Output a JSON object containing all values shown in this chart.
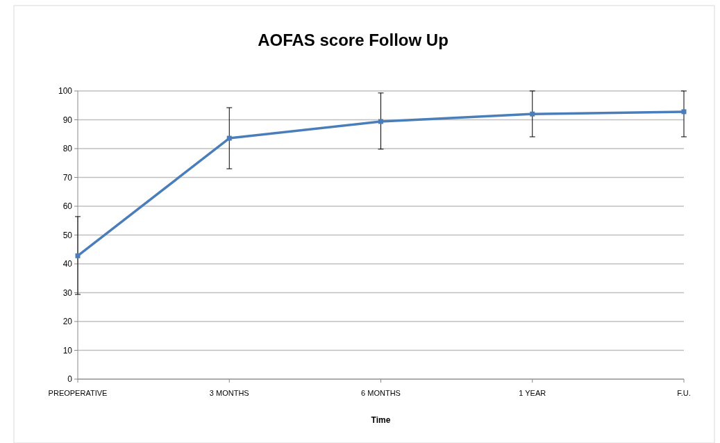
{
  "chart_data": {
    "type": "line",
    "title": "AOFAS score Follow Up",
    "xlabel": "Time",
    "categories": [
      "PREOPERATIVE",
      "3 MONTHS",
      "6 MONTHS",
      "1 YEAR",
      "F.U."
    ],
    "series": [
      {
        "color": "#4a7ebb",
        "values": [
          42.8,
          83.6,
          89.4,
          92.0,
          92.8
        ],
        "errors": [
          [
            29.4,
            56.4
          ],
          [
            73.0,
            94.2
          ],
          [
            79.8,
            99.3
          ],
          [
            84.1,
            100
          ],
          [
            84.1,
            100
          ]
        ]
      }
    ],
    "ylim": [
      0,
      100
    ],
    "yticks": [
      0,
      10,
      20,
      30,
      40,
      50,
      60,
      70,
      80,
      90,
      100
    ],
    "grid": "y",
    "marker": "square",
    "line_style": "solid"
  }
}
